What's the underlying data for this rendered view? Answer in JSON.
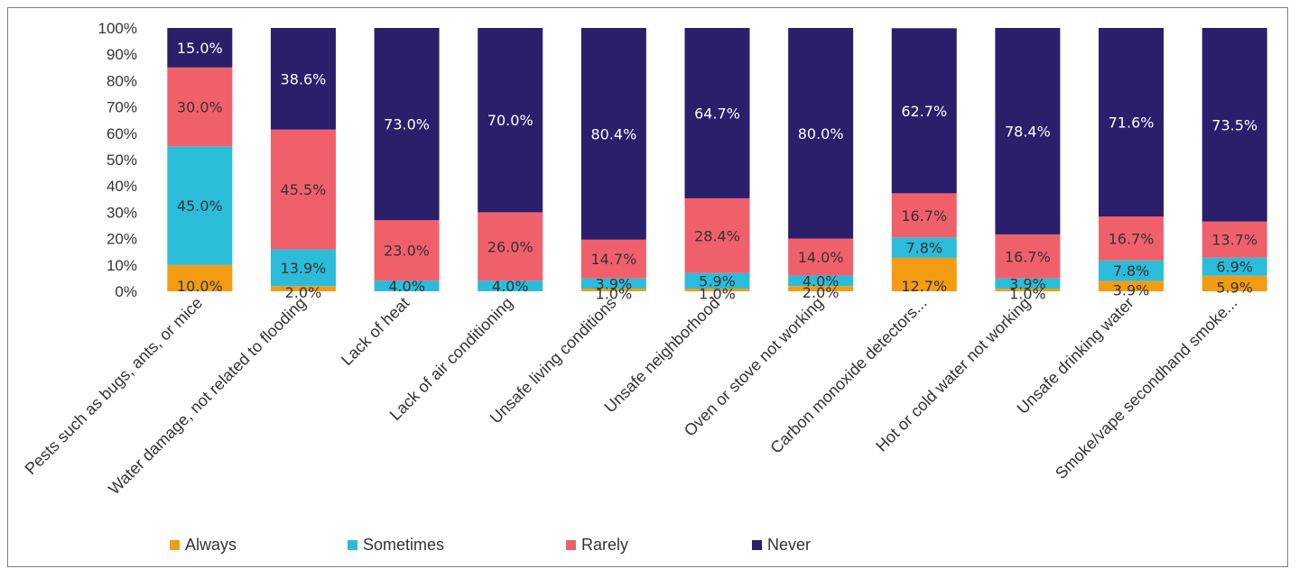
{
  "chart_data": {
    "type": "bar",
    "stacked": true,
    "percent": true,
    "categories": [
      "Pests such as bugs, ants, or mice",
      "Water damage, not related to flooding",
      "Lack of heat",
      "Lack of air conditioning",
      "Unsafe living conditions",
      "Unsafe neighborhood",
      "Oven or stove not working",
      "Carbon monoxide detectors...",
      "Hot or cold water not working",
      "Unsafe drinking water",
      "Smoke/vape secondhand smoke..."
    ],
    "series": [
      {
        "name": "Always",
        "color": "#F39C12",
        "values": [
          10.0,
          2.0,
          0,
          0,
          1.0,
          1.0,
          2.0,
          12.7,
          1.0,
          3.9,
          5.9
        ],
        "labels": [
          "10.0%",
          "2.0%",
          "",
          "",
          "1.0%",
          "1.0%",
          "2.0%",
          "12.7%",
          "1.0%",
          "3.9%",
          "5.9%"
        ]
      },
      {
        "name": "Sometimes",
        "color": "#2BBCD9",
        "values": [
          45.0,
          13.9,
          4.0,
          4.0,
          3.9,
          5.9,
          4.0,
          7.8,
          3.9,
          7.8,
          6.9
        ],
        "labels": [
          "45.0%",
          "13.9%",
          "4.0%",
          "4.0%",
          "3.9%",
          "5.9%",
          "4.0%",
          "7.8%",
          "3.9%",
          "7.8%",
          "6.9%"
        ]
      },
      {
        "name": "Rarely",
        "color": "#F0606B",
        "values": [
          30.0,
          45.5,
          23.0,
          26.0,
          14.7,
          28.4,
          14.0,
          16.7,
          16.7,
          16.7,
          13.7
        ],
        "labels": [
          "30.0%",
          "45.5%",
          "23.0%",
          "26.0%",
          "14.7%",
          "28.4%",
          "14.0%",
          "16.7%",
          "16.7%",
          "16.7%",
          "13.7%"
        ]
      },
      {
        "name": "Never",
        "color": "#2B1E6B",
        "values": [
          15.0,
          38.6,
          73.0,
          70.0,
          80.4,
          64.7,
          80.0,
          62.7,
          78.4,
          71.6,
          73.5
        ],
        "labels": [
          "15.0%",
          "38.6%",
          "73.0%",
          "70.0%",
          "80.4%",
          "64.7%",
          "80.0%",
          "62.7%",
          "78.4%",
          "71.6%",
          "73.5%"
        ]
      }
    ],
    "y_ticks": [
      "0%",
      "10%",
      "20%",
      "30%",
      "40%",
      "50%",
      "60%",
      "70%",
      "80%",
      "90%",
      "100%"
    ],
    "ylim": [
      0,
      100
    ],
    "grid": false,
    "legend_position": "bottom",
    "title": "",
    "xlabel": "",
    "ylabel": ""
  }
}
